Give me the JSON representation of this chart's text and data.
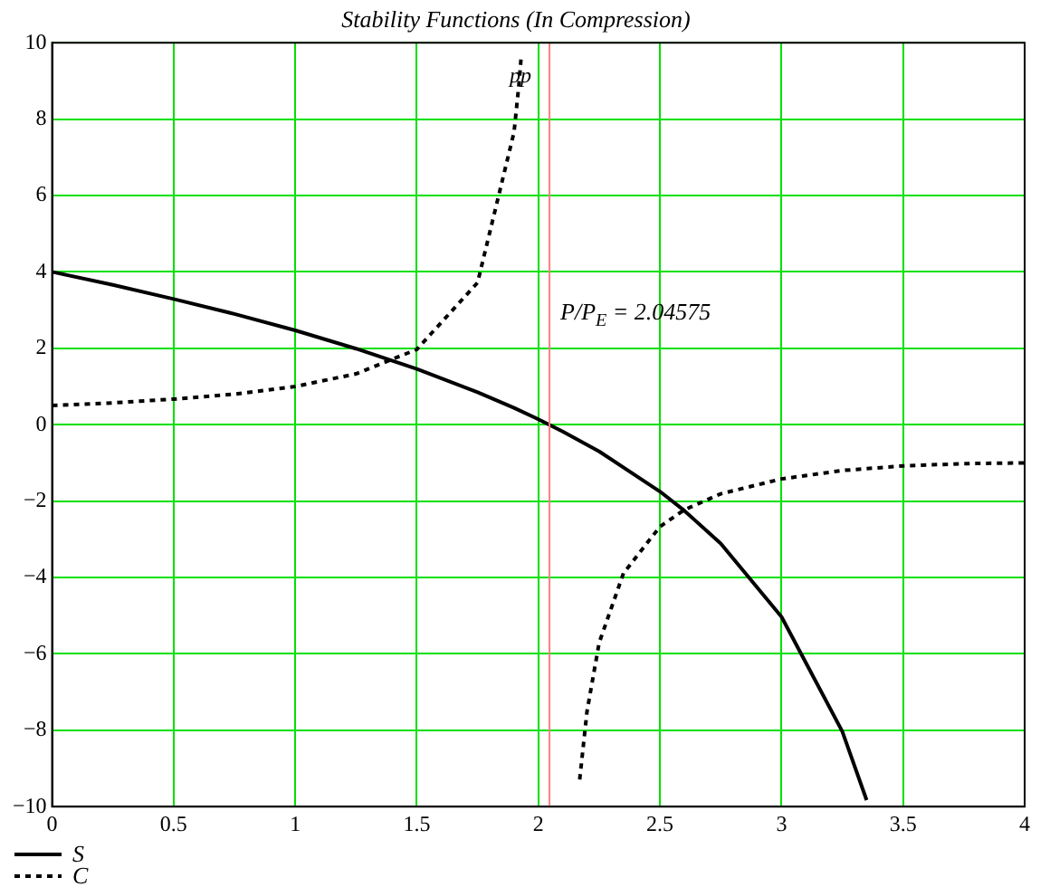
{
  "chart_data": {
    "type": "line",
    "title": "Stability Functions (In Compression)",
    "series": [
      {
        "name": "S",
        "color": "#000000",
        "line_style": "solid",
        "x": [
          0,
          0.25,
          0.5,
          0.75,
          1,
          1.25,
          1.5,
          1.75,
          1.9,
          2,
          2.1,
          2.25,
          2.5,
          2.6,
          2.75,
          3,
          3.25,
          3.35
        ],
        "values": [
          4,
          3.66,
          3.29,
          2.9,
          2.47,
          1.99,
          1.46,
          0.85,
          0.44,
          0.14,
          -0.18,
          -0.7,
          -1.75,
          -2.25,
          -3.11,
          -5.03,
          -8.03,
          -9.83
        ]
      },
      {
        "name": "C",
        "color": "#000000",
        "line_style": "dotted",
        "x": [
          0,
          0.25,
          0.5,
          0.75,
          1,
          1.25,
          1.5,
          1.75,
          1.9,
          1.92,
          1.93,
          2.05,
          2.17,
          2.2,
          2.25,
          2.35,
          2.5,
          2.6,
          2.75,
          3,
          3.25,
          3.5,
          3.75,
          4
        ],
        "values": [
          0.5,
          0.57,
          0.67,
          0.8,
          1,
          1.33,
          1.97,
          3.72,
          7.66,
          8.9,
          9.68,
          null,
          -9.29,
          -7.51,
          -5.71,
          -3.89,
          -2.67,
          -2.23,
          -1.81,
          -1.42,
          -1.2,
          -1.08,
          -1.02,
          -1
        ]
      }
    ],
    "xlim": [
      0,
      4
    ],
    "xticks": [
      0,
      0.5,
      1,
      1.5,
      2,
      2.5,
      3,
      3.5,
      4
    ],
    "ylim": [
      -10,
      10
    ],
    "yticks": [
      -10,
      -8,
      -6,
      -4,
      -2,
      0,
      2,
      4,
      6,
      8,
      10
    ],
    "grid": true,
    "marker": "none",
    "legend": "bottom left",
    "ref_lines": [
      {
        "axis": "x",
        "value": 2.04575,
        "label": "pp",
        "color": "#ff8080"
      }
    ],
    "annotations": [
      {
        "text": "P/P$_{E}$ = 2.04575",
        "x": 2.04575,
        "y": 3
      }
    ]
  }
}
